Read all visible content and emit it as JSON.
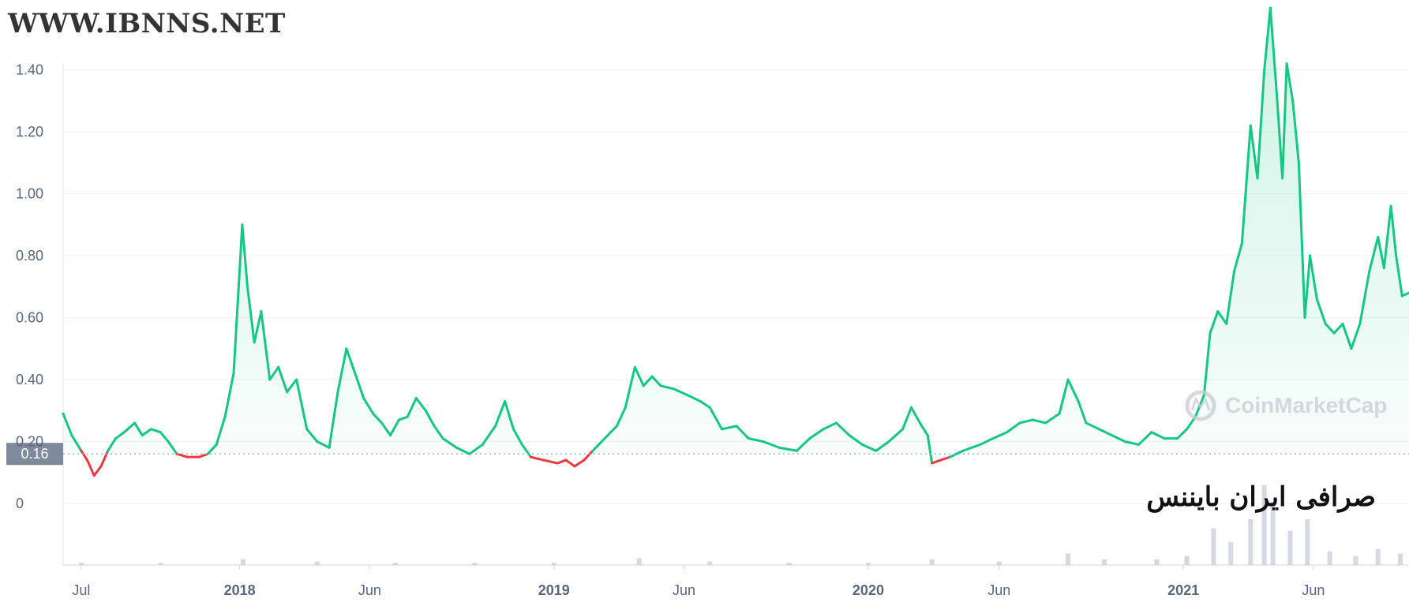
{
  "site_label": "WWW.IBNNS.NET",
  "exchange_label": "صرافی ایران بایننس",
  "watermark": "CoinMarketCap",
  "chart_data": {
    "type": "area",
    "ylim": [
      -0.2,
      1.45
    ],
    "y_ticks": [
      {
        "value": 1.4,
        "label": "1.40"
      },
      {
        "value": 1.2,
        "label": "1.20"
      },
      {
        "value": 1.0,
        "label": "1.00"
      },
      {
        "value": 0.8,
        "label": "0.80"
      },
      {
        "value": 0.6,
        "label": "0.60"
      },
      {
        "value": 0.4,
        "label": "0.40"
      },
      {
        "value": 0.2,
        "label": "0.20"
      },
      {
        "value": 0,
        "label": "0"
      }
    ],
    "x_ticks": [
      {
        "date": "2017-07-01",
        "label": "Jul",
        "bold": false
      },
      {
        "date": "2018-01-01",
        "label": "2018",
        "bold": true
      },
      {
        "date": "2018-06-01",
        "label": "Jun",
        "bold": false
      },
      {
        "date": "2019-01-01",
        "label": "2019",
        "bold": true
      },
      {
        "date": "2019-06-01",
        "label": "Jun",
        "bold": false
      },
      {
        "date": "2020-01-01",
        "label": "2020",
        "bold": true
      },
      {
        "date": "2020-06-01",
        "label": "Jun",
        "bold": false
      },
      {
        "date": "2021-01-01",
        "label": "2021",
        "bold": true
      },
      {
        "date": "2021-06-01",
        "label": "Jun",
        "bold": false
      }
    ],
    "x_range": [
      "2017-06-10",
      "2021-09-20"
    ],
    "baseline": {
      "value": 0.16,
      "label": "0.16"
    },
    "colors": {
      "above": "#16c784",
      "below": "#ea3943",
      "grid": "#eff2f5",
      "tick_text": "#58667e",
      "volume": "#c9cfdd",
      "baseline_tag": "#808a9d"
    },
    "series": [
      {
        "points": [
          [
            "2017-06-10",
            0.29
          ],
          [
            "2017-06-20",
            0.22
          ],
          [
            "2017-07-01",
            0.17
          ],
          [
            "2017-07-08",
            0.14
          ],
          [
            "2017-07-16",
            0.09
          ],
          [
            "2017-07-24",
            0.12
          ],
          [
            "2017-08-01",
            0.17
          ],
          [
            "2017-08-10",
            0.21
          ],
          [
            "2017-08-20",
            0.23
          ],
          [
            "2017-09-01",
            0.26
          ],
          [
            "2017-09-10",
            0.22
          ],
          [
            "2017-09-20",
            0.24
          ],
          [
            "2017-10-01",
            0.23
          ],
          [
            "2017-10-10",
            0.2
          ],
          [
            "2017-10-20",
            0.16
          ],
          [
            "2017-11-01",
            0.15
          ],
          [
            "2017-11-15",
            0.15
          ],
          [
            "2017-11-25",
            0.16
          ],
          [
            "2017-12-05",
            0.19
          ],
          [
            "2017-12-15",
            0.28
          ],
          [
            "2017-12-25",
            0.42
          ],
          [
            "2018-01-04",
            0.9
          ],
          [
            "2018-01-10",
            0.7
          ],
          [
            "2018-01-18",
            0.52
          ],
          [
            "2018-01-26",
            0.62
          ],
          [
            "2018-02-05",
            0.4
          ],
          [
            "2018-02-15",
            0.44
          ],
          [
            "2018-02-25",
            0.36
          ],
          [
            "2018-03-08",
            0.4
          ],
          [
            "2018-03-20",
            0.24
          ],
          [
            "2018-04-01",
            0.2
          ],
          [
            "2018-04-15",
            0.18
          ],
          [
            "2018-04-25",
            0.36
          ],
          [
            "2018-05-05",
            0.5
          ],
          [
            "2018-05-15",
            0.42
          ],
          [
            "2018-05-25",
            0.34
          ],
          [
            "2018-06-05",
            0.29
          ],
          [
            "2018-06-15",
            0.26
          ],
          [
            "2018-06-25",
            0.22
          ],
          [
            "2018-07-05",
            0.27
          ],
          [
            "2018-07-15",
            0.28
          ],
          [
            "2018-07-25",
            0.34
          ],
          [
            "2018-08-05",
            0.3
          ],
          [
            "2018-08-15",
            0.25
          ],
          [
            "2018-08-25",
            0.21
          ],
          [
            "2018-09-10",
            0.18
          ],
          [
            "2018-09-25",
            0.16
          ],
          [
            "2018-10-10",
            0.19
          ],
          [
            "2018-10-25",
            0.25
          ],
          [
            "2018-11-05",
            0.33
          ],
          [
            "2018-11-15",
            0.24
          ],
          [
            "2018-11-25",
            0.19
          ],
          [
            "2018-12-05",
            0.15
          ],
          [
            "2018-12-20",
            0.14
          ],
          [
            "2019-01-05",
            0.13
          ],
          [
            "2019-01-15",
            0.14
          ],
          [
            "2019-01-25",
            0.12
          ],
          [
            "2019-02-05",
            0.14
          ],
          [
            "2019-02-15",
            0.17
          ],
          [
            "2019-03-01",
            0.21
          ],
          [
            "2019-03-15",
            0.25
          ],
          [
            "2019-03-25",
            0.31
          ],
          [
            "2019-04-05",
            0.44
          ],
          [
            "2019-04-15",
            0.38
          ],
          [
            "2019-04-25",
            0.41
          ],
          [
            "2019-05-05",
            0.38
          ],
          [
            "2019-05-20",
            0.37
          ],
          [
            "2019-06-05",
            0.35
          ],
          [
            "2019-06-20",
            0.33
          ],
          [
            "2019-07-01",
            0.31
          ],
          [
            "2019-07-15",
            0.24
          ],
          [
            "2019-08-01",
            0.25
          ],
          [
            "2019-08-15",
            0.21
          ],
          [
            "2019-09-01",
            0.2
          ],
          [
            "2019-09-20",
            0.18
          ],
          [
            "2019-10-10",
            0.17
          ],
          [
            "2019-10-25",
            0.21
          ],
          [
            "2019-11-10",
            0.24
          ],
          [
            "2019-11-25",
            0.26
          ],
          [
            "2019-12-10",
            0.22
          ],
          [
            "2019-12-25",
            0.19
          ],
          [
            "2020-01-10",
            0.17
          ],
          [
            "2020-01-25",
            0.2
          ],
          [
            "2020-02-10",
            0.24
          ],
          [
            "2020-02-20",
            0.31
          ],
          [
            "2020-03-01",
            0.26
          ],
          [
            "2020-03-10",
            0.22
          ],
          [
            "2020-03-15",
            0.13
          ],
          [
            "2020-03-25",
            0.14
          ],
          [
            "2020-04-05",
            0.15
          ],
          [
            "2020-04-20",
            0.17
          ],
          [
            "2020-05-10",
            0.19
          ],
          [
            "2020-05-25",
            0.21
          ],
          [
            "2020-06-10",
            0.23
          ],
          [
            "2020-06-25",
            0.26
          ],
          [
            "2020-07-10",
            0.27
          ],
          [
            "2020-07-25",
            0.26
          ],
          [
            "2020-08-10",
            0.29
          ],
          [
            "2020-08-20",
            0.4
          ],
          [
            "2020-09-01",
            0.33
          ],
          [
            "2020-09-10",
            0.26
          ],
          [
            "2020-09-25",
            0.24
          ],
          [
            "2020-10-10",
            0.22
          ],
          [
            "2020-10-25",
            0.2
          ],
          [
            "2020-11-10",
            0.19
          ],
          [
            "2020-11-25",
            0.23
          ],
          [
            "2020-12-10",
            0.21
          ],
          [
            "2020-12-25",
            0.21
          ],
          [
            "2021-01-05",
            0.24
          ],
          [
            "2021-01-15",
            0.28
          ],
          [
            "2021-01-25",
            0.35
          ],
          [
            "2021-02-01",
            0.55
          ],
          [
            "2021-02-10",
            0.62
          ],
          [
            "2021-02-20",
            0.58
          ],
          [
            "2021-03-01",
            0.75
          ],
          [
            "2021-03-10",
            0.84
          ],
          [
            "2021-03-20",
            1.22
          ],
          [
            "2021-03-28",
            1.05
          ],
          [
            "2021-04-05",
            1.4
          ],
          [
            "2021-04-12",
            1.6
          ],
          [
            "2021-04-20",
            1.3
          ],
          [
            "2021-04-26",
            1.05
          ],
          [
            "2021-05-01",
            1.42
          ],
          [
            "2021-05-08",
            1.3
          ],
          [
            "2021-05-15",
            1.1
          ],
          [
            "2021-05-22",
            0.6
          ],
          [
            "2021-05-28",
            0.8
          ],
          [
            "2021-06-05",
            0.66
          ],
          [
            "2021-06-15",
            0.58
          ],
          [
            "2021-06-25",
            0.55
          ],
          [
            "2021-07-05",
            0.58
          ],
          [
            "2021-07-15",
            0.5
          ],
          [
            "2021-07-25",
            0.58
          ],
          [
            "2021-08-05",
            0.75
          ],
          [
            "2021-08-15",
            0.86
          ],
          [
            "2021-08-22",
            0.76
          ],
          [
            "2021-08-30",
            0.96
          ],
          [
            "2021-09-05",
            0.8
          ],
          [
            "2021-09-12",
            0.67
          ],
          [
            "2021-09-20",
            0.68
          ]
        ]
      }
    ],
    "volume": [
      [
        "2017-07-01",
        0.02
      ],
      [
        "2017-10-01",
        0.02
      ],
      [
        "2018-01-05",
        0.05
      ],
      [
        "2018-04-01",
        0.03
      ],
      [
        "2018-07-01",
        0.02
      ],
      [
        "2018-10-01",
        0.02
      ],
      [
        "2019-01-01",
        0.02
      ],
      [
        "2019-04-10",
        0.06
      ],
      [
        "2019-07-01",
        0.03
      ],
      [
        "2019-10-01",
        0.02
      ],
      [
        "2020-01-01",
        0.02
      ],
      [
        "2020-03-15",
        0.05
      ],
      [
        "2020-06-01",
        0.03
      ],
      [
        "2020-08-20",
        0.1
      ],
      [
        "2020-10-01",
        0.05
      ],
      [
        "2020-12-01",
        0.05
      ],
      [
        "2021-01-05",
        0.08
      ],
      [
        "2021-02-05",
        0.32
      ],
      [
        "2021-02-25",
        0.2
      ],
      [
        "2021-03-20",
        0.4
      ],
      [
        "2021-04-05",
        0.7
      ],
      [
        "2021-04-15",
        0.55
      ],
      [
        "2021-05-05",
        0.3
      ],
      [
        "2021-05-25",
        0.4
      ],
      [
        "2021-06-20",
        0.12
      ],
      [
        "2021-07-20",
        0.08
      ],
      [
        "2021-08-15",
        0.14
      ],
      [
        "2021-09-10",
        0.1
      ]
    ]
  }
}
